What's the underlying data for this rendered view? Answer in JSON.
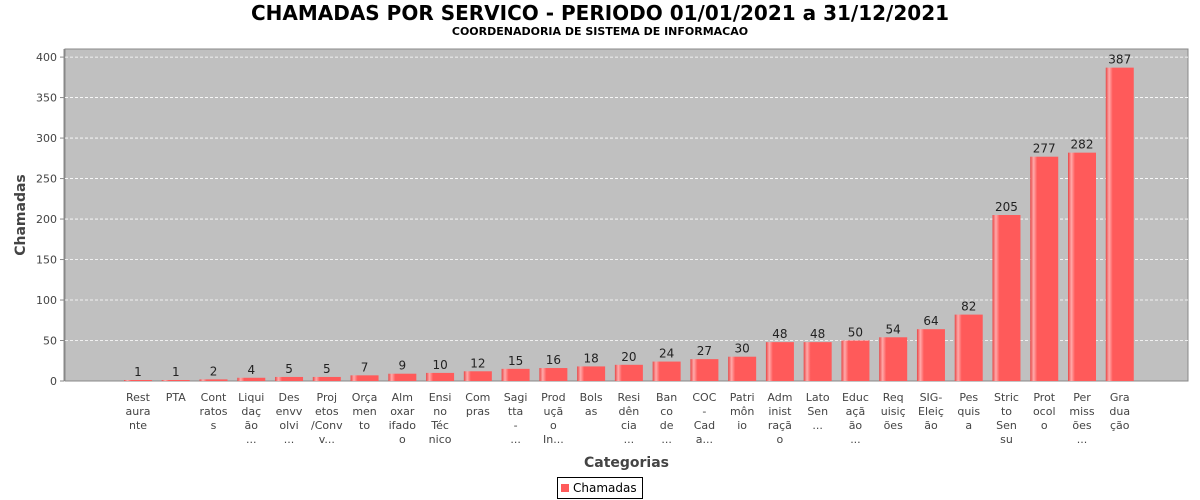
{
  "chart_data": {
    "type": "bar",
    "title": "CHAMADAS POR SERVICO - PERIODO 01/01/2021 a 31/12/2021",
    "subtitle": "COORDENADORIA DE SISTEMA DE INFORMACAO",
    "xlabel": "Categorias",
    "ylabel": "Chamadas",
    "ylim": [
      0,
      410
    ],
    "yticks": [
      0,
      50,
      100,
      150,
      200,
      250,
      300,
      350,
      400
    ],
    "grid": true,
    "legend_position": "bottom-center",
    "categories": [
      [
        "Rest",
        "aura",
        "nte"
      ],
      [
        "PTA"
      ],
      [
        "Cont",
        "ratos",
        "s"
      ],
      [
        "Liqui",
        "daç",
        "ão",
        "..."
      ],
      [
        "Des",
        "envv",
        "olvi",
        "..."
      ],
      [
        "Proj",
        "etos",
        "/Conv",
        "v..."
      ],
      [
        "Orça",
        "men",
        "to"
      ],
      [
        "Alm",
        "oxar",
        "ifado",
        "o"
      ],
      [
        "Ensi",
        "no",
        "Téc",
        "nico"
      ],
      [
        "Com",
        "pras"
      ],
      [
        "Sagi",
        "tta",
        "-",
        "..."
      ],
      [
        "Prod",
        "uçã",
        "o",
        "In..."
      ],
      [
        "Bols",
        "as"
      ],
      [
        "Resi",
        "dên",
        "cia",
        "..."
      ],
      [
        "Ban",
        "co",
        "de",
        "..."
      ],
      [
        "COC",
        "-",
        "Cad",
        "a..."
      ],
      [
        "Patri",
        "môn",
        "io"
      ],
      [
        "Adm",
        "inist",
        "raçã",
        "o"
      ],
      [
        "Lato",
        "Sen",
        "..."
      ],
      [
        "Educ",
        "açã",
        "ão",
        "..."
      ],
      [
        "Req",
        "uisiç",
        "ões"
      ],
      [
        "SIG-",
        "Eleiç",
        "ão"
      ],
      [
        "Pes",
        "quis",
        "a"
      ],
      [
        "Stric",
        "to",
        "Sen",
        "su"
      ],
      [
        "Prot",
        "ocol",
        "o"
      ],
      [
        "Per",
        "miss",
        "ões",
        "..."
      ],
      [
        "Gra",
        "dua",
        "ção"
      ]
    ],
    "series": [
      {
        "name": "Chamadas",
        "values": [
          1,
          1,
          2,
          4,
          5,
          5,
          7,
          9,
          10,
          12,
          15,
          16,
          18,
          20,
          24,
          27,
          30,
          48,
          48,
          50,
          54,
          64,
          82,
          205,
          277,
          282,
          387
        ]
      }
    ],
    "colors": {
      "bar": "#ff5a5a",
      "bar_light": "#ffaaaa",
      "bar_dark": "#e84545",
      "plot_background": "#c0c0c0",
      "gridline": "#ffffff"
    }
  }
}
